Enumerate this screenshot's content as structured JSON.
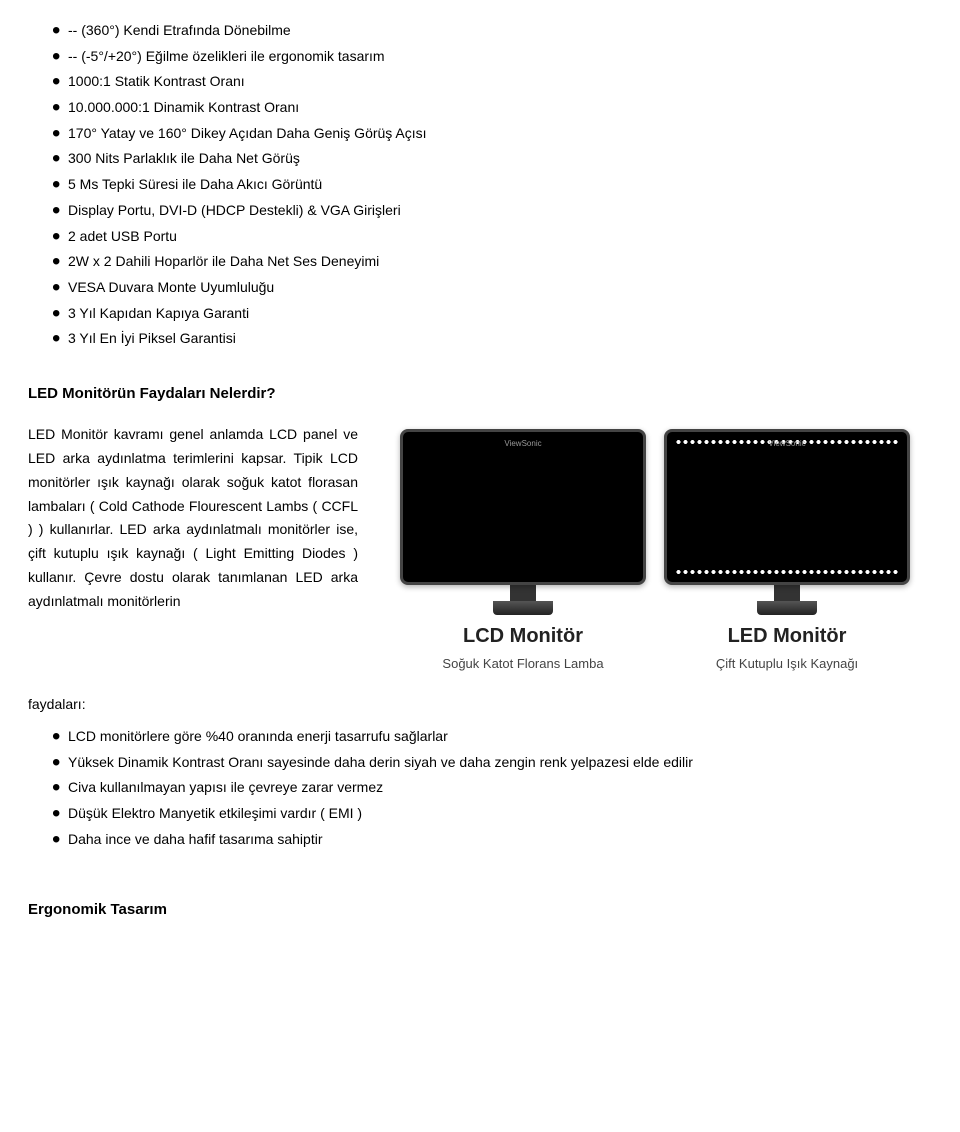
{
  "specList": {
    "items": [
      "-- (360°) Kendi Etrafında Dönebilme",
      "-- (-5°/+20°) Eğilme özelikleri ile ergonomik tasarım",
      "1000:1 Statik Kontrast Oranı",
      "10.000.000:1 Dinamik Kontrast Oranı",
      "170° Yatay ve 160° Dikey Açıdan Daha Geniş Görüş Açısı",
      "300 Nits Parlaklık ile Daha Net Görüş",
      "5 Ms Tepki Süresi ile Daha Akıcı Görüntü",
      "Display Portu, DVI-D (HDCP Destekli) & VGA Girişleri",
      "2 adet USB Portu",
      "2W x 2 Dahili Hoparlör ile Daha Net Ses Deneyimi",
      "VESA Duvara Monte Uyumluluğu",
      "3 Yıl Kapıdan Kapıya Garanti",
      "3 Yıl En İyi Piksel Garantisi"
    ]
  },
  "heading1": "LED Monitörün Faydaları Nelerdir?",
  "paragraph": "LED Monitör kavramı genel anlamda LCD panel ve LED arka aydınlatma terimlerini kapsar. Tipik LCD monitörler ışık kaynağı olarak soğuk katot florasan lambaları ( Cold Cathode Flourescent Lambs ( CCFL ) ) kullanırlar. LED arka aydınlatmalı monitörler ise, çift kutuplu ışık kaynağı ( Light Emitting Diodes ) kullanır. Çevre dostu olarak tanımlanan LED arka aydınlatmalı monitörlerin",
  "faydalariLabel": "faydaları:",
  "monitors": {
    "lcd": {
      "title": "LCD Monitör",
      "subtitle": "Soğuk Katot Florans Lamba"
    },
    "led": {
      "title": "LED Monitör",
      "subtitle": "Çift Kutuplu Işık Kaynağı"
    }
  },
  "benefitList": {
    "items": [
      "LCD monitörlere göre %40 oranında enerji tasarrufu sağlarlar",
      "Yüksek Dinamik Kontrast Oranı sayesinde daha derin siyah ve daha zengin renk yelpazesi elde edilir",
      "Civa kullanılmayan yapısı ile çevreye zarar vermez",
      "Düşük Elektro Manyetik etkileşimi vardır ( EMI )",
      "Daha ince ve daha hafif tasarıma sahiptir"
    ]
  },
  "heading2": "Ergonomik Tasarım"
}
